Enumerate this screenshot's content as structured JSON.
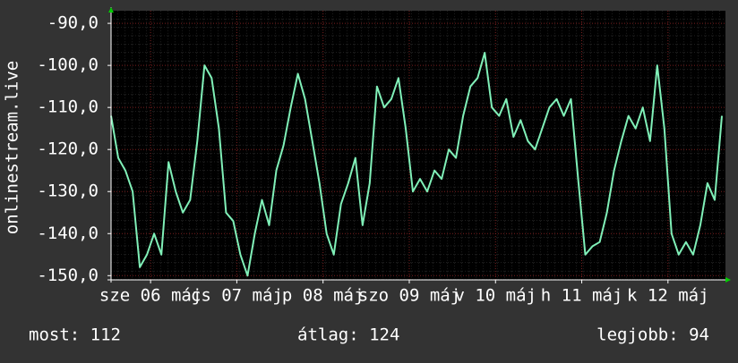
{
  "chart_data": {
    "type": "line",
    "y_label": "onlinestream.live",
    "x": [
      0,
      2,
      4,
      6,
      8,
      10,
      12,
      14,
      16,
      18,
      20,
      22,
      24,
      26,
      28,
      30,
      32,
      34,
      36,
      38,
      40,
      42,
      44,
      46,
      48,
      50,
      52,
      54,
      56,
      58,
      60,
      62,
      64,
      66,
      68,
      70,
      72,
      74,
      76,
      78,
      80,
      82,
      84,
      86,
      88,
      90,
      92,
      94,
      96,
      98,
      100,
      102,
      104,
      106,
      108,
      110,
      112,
      114,
      116,
      118,
      120,
      122,
      124,
      126,
      128,
      130,
      132,
      134,
      136,
      138,
      140,
      142,
      144,
      146,
      148,
      150,
      152,
      154,
      156,
      158,
      160,
      162,
      164,
      166,
      168,
      170
    ],
    "series": [
      {
        "name": "onlinestream.live",
        "color": "#80f0b8",
        "values": [
          -112,
          -122,
          -125,
          -130,
          -148,
          -145,
          -140,
          -145,
          -123,
          -130,
          -135,
          -132,
          -118,
          -100,
          -103,
          -115,
          -135,
          -137,
          -145,
          -150,
          -140,
          -132,
          -138,
          -125,
          -119,
          -110,
          -102,
          -108,
          -118,
          -128,
          -140,
          -145,
          -133,
          -128,
          -122,
          -138,
          -128,
          -105,
          -110,
          -108,
          -103,
          -115,
          -130,
          -127,
          -130,
          -125,
          -127,
          -120,
          -122,
          -112,
          -105,
          -103,
          -97,
          -110,
          -112,
          -108,
          -117,
          -113,
          -118,
          -120,
          -115,
          -110,
          -108,
          -112,
          -108,
          -127,
          -145,
          -143,
          -142,
          -135,
          -125,
          -118,
          -112,
          -115,
          -110,
          -118,
          -100,
          -115,
          -140,
          -145,
          -142,
          -145,
          -138,
          -128,
          -132,
          -112
        ]
      }
    ],
    "xlim": [
      0,
      171
    ],
    "xticks": [
      {
        "value": 11,
        "label": "sze 06 máj"
      },
      {
        "value": 35,
        "label": "cs 07 máj"
      },
      {
        "value": 59,
        "label": "p 08 máj"
      },
      {
        "value": 83,
        "label": "szo 09 máj"
      },
      {
        "value": 107,
        "label": "v 10 máj"
      },
      {
        "value": 131,
        "label": "h 11 máj"
      },
      {
        "value": 155,
        "label": "k 12 máj"
      }
    ],
    "ylim": [
      -151,
      -87
    ],
    "yticks": [
      {
        "value": -90,
        "label": "-90,0"
      },
      {
        "value": -100,
        "label": "-100,0"
      },
      {
        "value": -110,
        "label": "-110,0"
      },
      {
        "value": -120,
        "label": "-120,0"
      },
      {
        "value": -130,
        "label": "-130,0"
      },
      {
        "value": -140,
        "label": "-140,0"
      },
      {
        "value": -150,
        "label": "-150,0"
      }
    ],
    "grid": true,
    "summary": [
      "most: 112",
      "átlag: 124",
      "legjobb: 94"
    ]
  }
}
